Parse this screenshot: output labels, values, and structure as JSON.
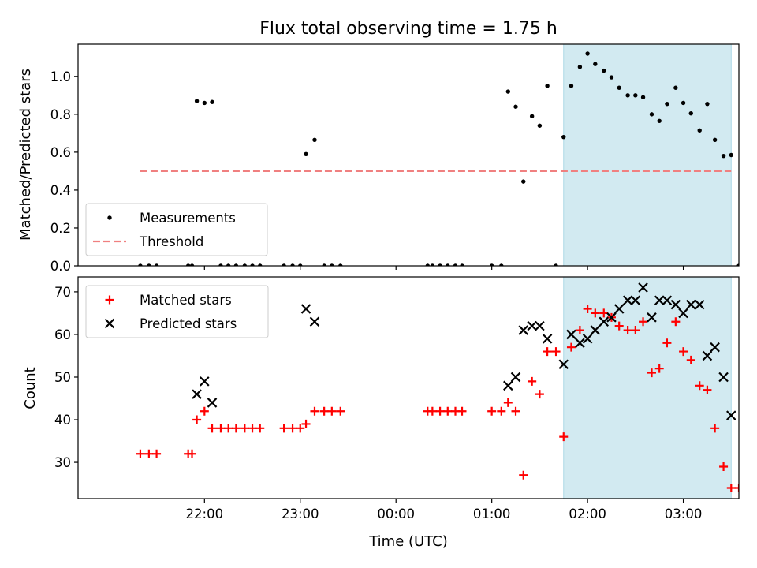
{
  "title": "Flux total observing time = 1.75 h",
  "colors": {
    "measurements": "#000000",
    "threshold": "#f08080",
    "matched": "#ff0000",
    "predicted": "#000000",
    "highlight": "#add8e6"
  },
  "chart_data": [
    {
      "type": "scatter",
      "title": "Flux total observing time = 1.75 h",
      "xlabel": "",
      "ylabel": "Matched/Predicted stars",
      "ylim": [
        0,
        1.17
      ],
      "y_ticks": [
        "0.0",
        "0.2",
        "0.4",
        "0.6",
        "0.8",
        "1.0"
      ],
      "x_unit": "hours since 21:00 UTC",
      "xlim": [
        -0.32,
        6.58
      ],
      "highlight_span": [
        4.75,
        6.5
      ],
      "legend_placement": "lower-left",
      "grid": false,
      "series": [
        {
          "name": "Measurements",
          "marker": "dot",
          "points": [
            [
              0.33,
              0
            ],
            [
              0.42,
              0
            ],
            [
              0.5,
              0
            ],
            [
              0.83,
              0
            ],
            [
              0.87,
              0
            ],
            [
              0.92,
              0.87
            ],
            [
              1.0,
              0.86
            ],
            [
              1.08,
              0.865
            ],
            [
              1.17,
              0
            ],
            [
              1.25,
              0
            ],
            [
              1.33,
              0
            ],
            [
              1.42,
              0
            ],
            [
              1.5,
              0
            ],
            [
              1.58,
              0
            ],
            [
              1.83,
              0
            ],
            [
              1.92,
              0
            ],
            [
              2.0,
              0
            ],
            [
              2.06,
              0.59
            ],
            [
              2.15,
              0.665
            ],
            [
              2.25,
              0
            ],
            [
              2.33,
              0
            ],
            [
              2.42,
              0
            ],
            [
              3.33,
              0
            ],
            [
              3.38,
              0
            ],
            [
              3.46,
              0
            ],
            [
              3.54,
              0
            ],
            [
              3.62,
              0
            ],
            [
              3.69,
              0
            ],
            [
              4.0,
              0
            ],
            [
              4.1,
              0
            ],
            [
              4.17,
              0.92
            ],
            [
              4.25,
              0.84
            ],
            [
              4.33,
              0.445
            ],
            [
              4.42,
              0.79
            ],
            [
              4.5,
              0.74
            ],
            [
              4.58,
              0.95
            ],
            [
              4.67,
              0
            ],
            [
              4.75,
              0.68
            ],
            [
              4.83,
              0.95
            ],
            [
              4.92,
              1.05
            ],
            [
              5.0,
              1.12
            ],
            [
              5.08,
              1.065
            ],
            [
              5.17,
              1.03
            ],
            [
              5.25,
              0.995
            ],
            [
              5.33,
              0.94
            ],
            [
              5.42,
              0.9
            ],
            [
              5.5,
              0.9
            ],
            [
              5.58,
              0.89
            ],
            [
              5.67,
              0.8
            ],
            [
              5.75,
              0.765
            ],
            [
              5.83,
              0.855
            ],
            [
              5.92,
              0.94
            ],
            [
              6.0,
              0.86
            ],
            [
              6.08,
              0.805
            ],
            [
              6.17,
              0.715
            ],
            [
              6.25,
              0.855
            ],
            [
              6.33,
              0.665
            ],
            [
              6.42,
              0.58
            ],
            [
              6.5,
              0.585
            ],
            [
              6.58,
              0
            ]
          ]
        },
        {
          "name": "Threshold",
          "style": "dashed",
          "points": [
            [
              0.33,
              0.5
            ],
            [
              6.5,
              0.5
            ]
          ]
        }
      ]
    },
    {
      "type": "scatter",
      "xlabel": "Time (UTC)",
      "ylabel": "Count",
      "ylim": [
        21.5,
        73.5
      ],
      "y_ticks": [
        "30",
        "40",
        "50",
        "60",
        "70"
      ],
      "x_unit": "hours since 21:00 UTC",
      "xlim": [
        -0.32,
        6.58
      ],
      "x_ticks": [
        {
          "x": 1,
          "label": "22:00"
        },
        {
          "x": 2,
          "label": "23:00"
        },
        {
          "x": 3,
          "label": "00:00"
        },
        {
          "x": 4,
          "label": "01:00"
        },
        {
          "x": 5,
          "label": "02:00"
        },
        {
          "x": 6,
          "label": "03:00"
        }
      ],
      "highlight_span": [
        4.75,
        6.5
      ],
      "legend_placement": "top-left",
      "grid": false,
      "series": [
        {
          "name": "Matched stars",
          "marker": "plus",
          "points": [
            [
              0.33,
              32
            ],
            [
              0.42,
              32
            ],
            [
              0.5,
              32
            ],
            [
              0.83,
              32
            ],
            [
              0.87,
              32
            ],
            [
              0.92,
              40
            ],
            [
              1.0,
              42
            ],
            [
              1.08,
              38
            ],
            [
              1.17,
              38
            ],
            [
              1.25,
              38
            ],
            [
              1.33,
              38
            ],
            [
              1.42,
              38
            ],
            [
              1.5,
              38
            ],
            [
              1.58,
              38
            ],
            [
              1.83,
              38
            ],
            [
              1.92,
              38
            ],
            [
              2.0,
              38
            ],
            [
              2.06,
              39
            ],
            [
              2.15,
              42
            ],
            [
              2.25,
              42
            ],
            [
              2.33,
              42
            ],
            [
              2.42,
              42
            ],
            [
              3.33,
              42
            ],
            [
              3.38,
              42
            ],
            [
              3.46,
              42
            ],
            [
              3.54,
              42
            ],
            [
              3.62,
              42
            ],
            [
              3.69,
              42
            ],
            [
              4.0,
              42
            ],
            [
              4.1,
              42
            ],
            [
              4.17,
              44
            ],
            [
              4.25,
              42
            ],
            [
              4.33,
              27
            ],
            [
              4.42,
              49
            ],
            [
              4.5,
              46
            ],
            [
              4.58,
              56
            ],
            [
              4.67,
              56
            ],
            [
              4.75,
              36
            ],
            [
              4.83,
              57
            ],
            [
              4.92,
              61
            ],
            [
              5.0,
              66
            ],
            [
              5.08,
              65
            ],
            [
              5.17,
              65
            ],
            [
              5.25,
              64
            ],
            [
              5.33,
              62
            ],
            [
              5.42,
              61
            ],
            [
              5.5,
              61
            ],
            [
              5.58,
              63
            ],
            [
              5.67,
              51
            ],
            [
              5.75,
              52
            ],
            [
              5.83,
              58
            ],
            [
              5.92,
              63
            ],
            [
              6.0,
              56
            ],
            [
              6.08,
              54
            ],
            [
              6.17,
              48
            ],
            [
              6.25,
              47
            ],
            [
              6.33,
              38
            ],
            [
              6.42,
              29
            ],
            [
              6.5,
              24
            ],
            [
              6.58,
              24
            ]
          ]
        },
        {
          "name": "Predicted stars",
          "marker": "x",
          "points": [
            [
              0.92,
              46
            ],
            [
              1.0,
              49
            ],
            [
              1.08,
              44
            ],
            [
              2.06,
              66
            ],
            [
              2.15,
              63
            ],
            [
              4.17,
              48
            ],
            [
              4.25,
              50
            ],
            [
              4.33,
              61
            ],
            [
              4.42,
              62
            ],
            [
              4.5,
              62
            ],
            [
              4.58,
              59
            ],
            [
              4.75,
              53
            ],
            [
              4.83,
              60
            ],
            [
              4.92,
              58
            ],
            [
              5.0,
              59
            ],
            [
              5.08,
              61
            ],
            [
              5.17,
              63
            ],
            [
              5.25,
              64
            ],
            [
              5.33,
              66
            ],
            [
              5.42,
              68
            ],
            [
              5.5,
              68
            ],
            [
              5.58,
              71
            ],
            [
              5.67,
              64
            ],
            [
              5.75,
              68
            ],
            [
              5.83,
              68
            ],
            [
              5.92,
              67
            ],
            [
              6.0,
              65
            ],
            [
              6.08,
              67
            ],
            [
              6.17,
              67
            ],
            [
              6.25,
              55
            ],
            [
              6.33,
              57
            ],
            [
              6.42,
              50
            ],
            [
              6.5,
              41
            ]
          ]
        }
      ]
    }
  ]
}
